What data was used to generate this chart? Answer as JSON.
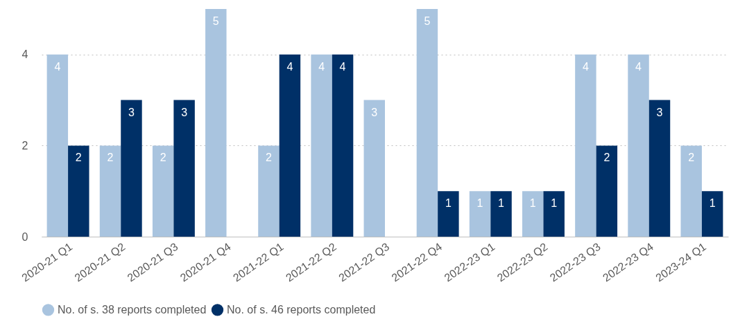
{
  "chart_data": {
    "type": "bar",
    "categories": [
      "2020-21 Q1",
      "2020-21 Q2",
      "2020-21 Q3",
      "2020-21 Q4",
      "2021-22 Q1",
      "2021-22 Q2",
      "2021-22 Q3",
      "2021-22 Q4",
      "2022-23 Q1",
      "2022-23 Q2",
      "2022-23 Q3",
      "2022-23 Q4",
      "2023-24 Q1"
    ],
    "series": [
      {
        "name": "No. of s. 38 reports completed",
        "color": "#a9c4df",
        "values": [
          4,
          2,
          2,
          5,
          2,
          4,
          3,
          5,
          1,
          1,
          4,
          4,
          2
        ]
      },
      {
        "name": "No. of s. 46 reports completed",
        "color": "#003067",
        "values": [
          2,
          3,
          3,
          null,
          4,
          4,
          null,
          1,
          1,
          1,
          2,
          3,
          1
        ]
      }
    ],
    "ylim": [
      0,
      5
    ],
    "yticks": [
      0,
      2,
      4
    ],
    "grid": "y",
    "legend": "bottom",
    "data_labels": true
  }
}
